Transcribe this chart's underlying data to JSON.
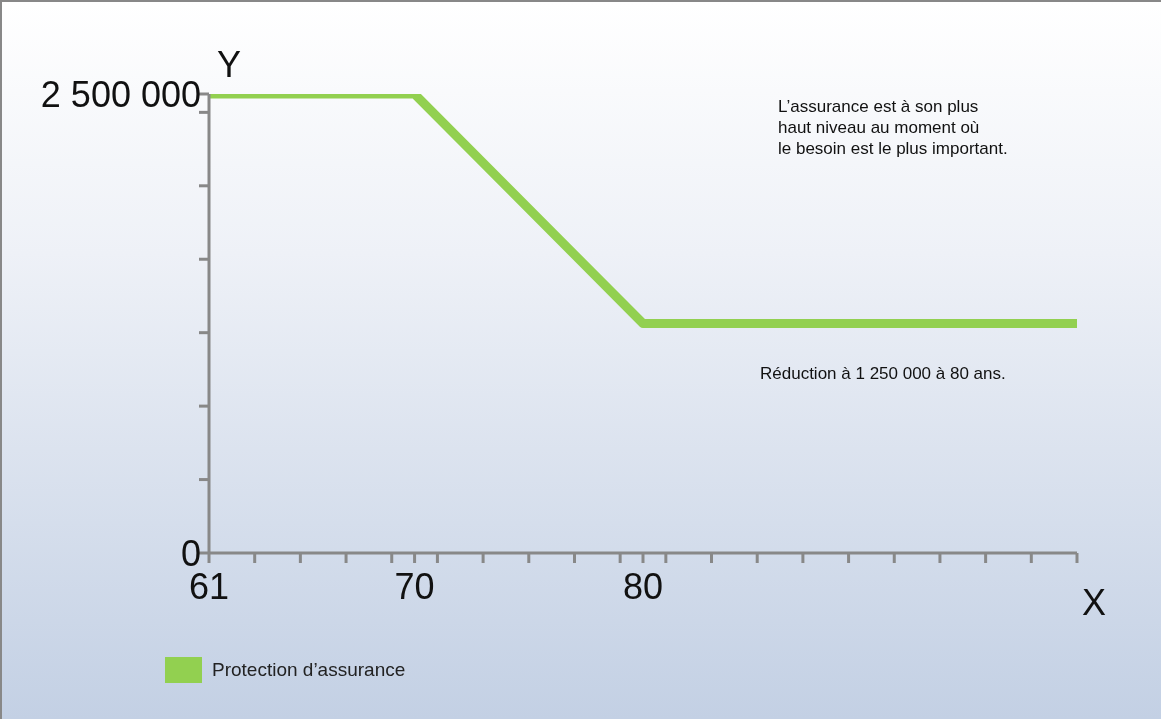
{
  "chart_data": {
    "type": "line",
    "xlabel": "X",
    "ylabel": "Y",
    "x": [
      61,
      70,
      80,
      99
    ],
    "series": [
      {
        "name": "Protection d’assurance",
        "color": "#92d050",
        "values": [
          2500000,
          2500000,
          1250000,
          1250000
        ]
      }
    ],
    "xlim": [
      61,
      99
    ],
    "xticks": [
      61,
      {
        "value": 63,
        "label": null
      },
      {
        "value": 65,
        "label": null
      },
      {
        "value": 67,
        "label": null
      },
      {
        "value": 69,
        "label": null
      },
      70,
      {
        "value": 71,
        "label": null
      },
      {
        "value": 73,
        "label": null
      },
      {
        "value": 75,
        "label": null
      },
      {
        "value": 77,
        "label": null
      },
      {
        "value": 79,
        "label": null
      },
      80,
      {
        "value": 81,
        "label": null
      },
      {
        "value": 83,
        "label": null
      },
      {
        "value": 85,
        "label": null
      },
      {
        "value": 87,
        "label": null
      },
      {
        "value": 89,
        "label": null
      },
      {
        "value": 91,
        "label": null
      },
      {
        "value": 93,
        "label": null
      },
      {
        "value": 95,
        "label": null
      },
      {
        "value": 97,
        "label": null
      },
      {
        "value": 99,
        "label": null
      }
    ],
    "ylim": [
      0,
      2500000
    ],
    "yticks": [
      0,
      {
        "value": 400000,
        "label": null
      },
      {
        "value": 800000,
        "label": null
      },
      {
        "value": 1200000,
        "label": null
      },
      {
        "value": 1600000,
        "label": null
      },
      {
        "value": 2000000,
        "label": null
      },
      {
        "value": 2400000,
        "label": null
      },
      {
        "value": 2500000,
        "label": "2 500 000"
      }
    ],
    "annotations": [
      "L’assurance est à son plus\nhaut niveau au moment où\nle besoin est le plus important.",
      "Réduction à 1 250 000 à 80 ans."
    ],
    "legend": "bottom left",
    "grid": false,
    "marker": "none",
    "line_style": "solid"
  }
}
